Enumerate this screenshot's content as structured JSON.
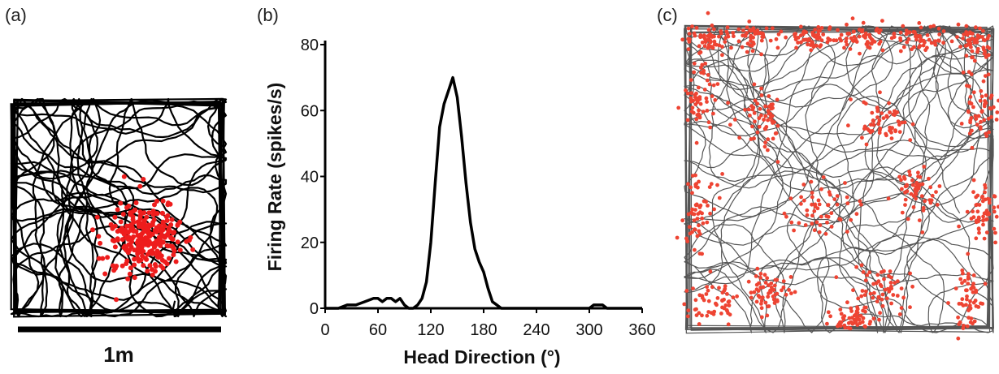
{
  "panels": {
    "a_label": "(a)",
    "b_label": "(b)",
    "c_label": "(c)"
  },
  "scale_bar": {
    "label": "1m"
  },
  "colors": {
    "trajectory_a": "#000000",
    "trajectory_c": "#555555",
    "spikes": "#ee1c1c",
    "spikes_c": "#ee4433",
    "curve": "#000000"
  },
  "chart_data": [
    {
      "type": "trajectory",
      "panel": "(a)",
      "description_kind": "place cell spike map",
      "scale": "1m"
    },
    {
      "type": "line",
      "panel": "(b)",
      "xlabel": "Head Direction (°)",
      "ylabel": "Firing Rate (spikes/s)",
      "xlim": [
        0,
        360
      ],
      "ylim": [
        0,
        80
      ],
      "xticks": [
        0,
        60,
        120,
        180,
        240,
        300,
        360
      ],
      "yticks": [
        0,
        20,
        40,
        60,
        80
      ],
      "x": [
        0,
        15,
        25,
        35,
        45,
        55,
        60,
        65,
        70,
        75,
        80,
        85,
        90,
        95,
        100,
        105,
        110,
        115,
        120,
        125,
        130,
        135,
        140,
        145,
        150,
        155,
        160,
        165,
        170,
        175,
        180,
        185,
        190,
        195,
        200,
        210,
        220,
        240,
        260,
        280,
        300,
        305,
        310,
        315,
        320,
        340,
        360
      ],
      "y": [
        0,
        0,
        1,
        1,
        2,
        3,
        3,
        2,
        3,
        3,
        2,
        3,
        1,
        0,
        0,
        1,
        3,
        8,
        20,
        38,
        55,
        62,
        66,
        70,
        64,
        52,
        38,
        26,
        18,
        14,
        11,
        6,
        2,
        1,
        0,
        0,
        0,
        0,
        0,
        0,
        0,
        1,
        1,
        1,
        0,
        0,
        0
      ]
    },
    {
      "type": "trajectory",
      "panel": "(c)",
      "description_kind": "grid cell spike map"
    }
  ]
}
